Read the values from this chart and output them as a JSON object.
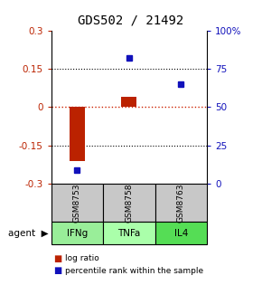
{
  "title": "GDS502 / 21492",
  "samples": [
    "GSM8753",
    "GSM8758",
    "GSM8763"
  ],
  "agents": [
    "IFNg",
    "TNFa",
    "IL4"
  ],
  "log_ratios": [
    -0.21,
    0.042,
    0.0
  ],
  "percentile_ranks": [
    9,
    82,
    65
  ],
  "ylim_left": [
    -0.3,
    0.3
  ],
  "ylim_right": [
    0,
    100
  ],
  "yticks_left": [
    -0.3,
    -0.15,
    0,
    0.15,
    0.3
  ],
  "yticks_right": [
    0,
    25,
    50,
    75,
    100
  ],
  "yticklabels_right": [
    "0",
    "25",
    "50",
    "75",
    "100%"
  ],
  "bar_color": "#bb2200",
  "dot_color": "#1111bb",
  "zero_line_color": "#cc2200",
  "sample_box_color": "#c8c8c8",
  "agent_box_colors": [
    "#99ee99",
    "#aaffaa",
    "#55dd55"
  ],
  "legend_bar_label": "log ratio",
  "legend_dot_label": "percentile rank within the sample",
  "agent_label": "agent",
  "title_fontsize": 10,
  "tick_fontsize": 7.5,
  "bar_width": 0.3
}
